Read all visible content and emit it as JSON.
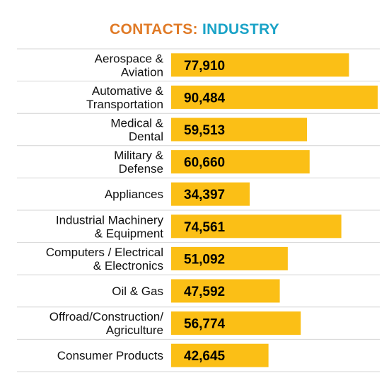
{
  "header": {
    "title_part1": "CONTACTS:",
    "title_part2": "INDUSTRY"
  },
  "colors": {
    "bar": "#fbbf16",
    "divider": "#d4d4d4",
    "label_text": "#111111",
    "title_orange": "#e07a26",
    "title_blue": "#1aa3c7"
  },
  "chart_data": {
    "type": "bar",
    "orientation": "horizontal",
    "title": "CONTACTS: INDUSTRY",
    "categories": [
      [
        "Aerospace &",
        "Aviation"
      ],
      [
        "Automative &",
        "Transportation"
      ],
      [
        "Medical &",
        "Dental"
      ],
      [
        "Military &",
        "Defense"
      ],
      [
        "Appliances"
      ],
      [
        "Industrial Machinery",
        "& Equipment"
      ],
      [
        "Computers / Electrical",
        "& Electronics"
      ],
      [
        "Oil & Gas"
      ],
      [
        "Offroad/Construction/",
        "Agriculture"
      ],
      [
        "Consumer Products"
      ]
    ],
    "values": [
      77910,
      90484,
      59513,
      60660,
      34397,
      74561,
      51092,
      47592,
      56774,
      42645
    ],
    "value_labels": [
      "77,910",
      "90,484",
      "59,513",
      "60,660",
      "34,397",
      "74,561",
      "51,092",
      "47,592",
      "56,774",
      "42,645"
    ],
    "xlim": [
      0,
      90484
    ],
    "grid": false,
    "legend": "none"
  }
}
